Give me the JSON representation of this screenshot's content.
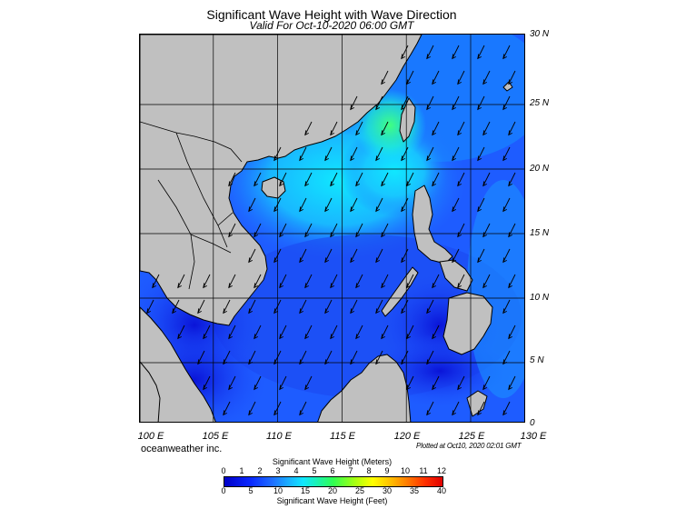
{
  "title": "Significant Wave Height with Wave Direction",
  "subtitle": "Valid For Oct-10-2020 06:00 GMT",
  "latitude_labels": [
    "30 N",
    "25 N",
    "20 N",
    "15 N",
    "10 N",
    "5 N",
    "0"
  ],
  "longitude_labels": [
    "100 E",
    "105 E",
    "110 E",
    "115 E",
    "120 E",
    "125 E",
    "130 E"
  ],
  "credit": "oceanweather inc.",
  "plotted": "Plotted at Oct10, 2020 02:01 GMT",
  "colorbar": {
    "meters_title": "Significant Wave Height (Meters)",
    "meters_ticks": [
      "0",
      "1",
      "2",
      "3",
      "4",
      "5",
      "6",
      "7",
      "8",
      "9",
      "10",
      "11",
      "12"
    ],
    "feet_ticks": [
      "0",
      "5",
      "10",
      "15",
      "20",
      "25",
      "30",
      "35",
      "40"
    ],
    "feet_title": "Significant Wave Height (Feet)"
  },
  "map": {
    "region": "South China Sea",
    "lon_range": [
      100,
      130
    ],
    "lat_range": [
      0,
      30
    ],
    "land_color": "#c0c0c0",
    "coast_color": "#000000",
    "arrow_color": "#000000",
    "dominant_wave_direction": "toward south-west"
  }
}
